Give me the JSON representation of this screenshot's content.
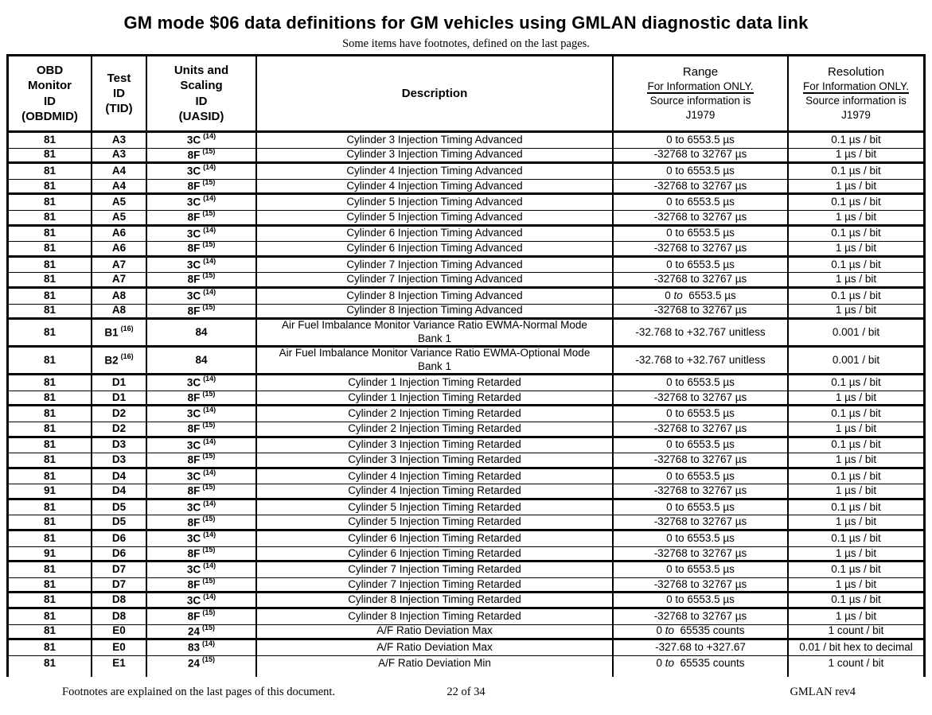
{
  "page": {
    "title": "GM mode $06 data definitions for GM vehicles using GMLAN diagnostic data link",
    "subtitle": "Some items have footnotes, defined on the last pages."
  },
  "table": {
    "headers": {
      "obdmid": "OBD\nMonitor\nID\n(OBDMID)",
      "tid": "Test\nID\n(TID)",
      "uasid": "Units and\nScaling\nID\n(UASID)",
      "description": "Description",
      "range": {
        "title": "Range",
        "note1": "For Information ONLY.",
        "note2": "Source information is",
        "note3": "J1979"
      },
      "resolution": {
        "title": "Resolution",
        "note1": "For Information ONLY.",
        "note2": "Source information is",
        "note3": "J1979"
      }
    },
    "rows": [
      {
        "obdmid": "81",
        "tid": "A3",
        "tid_sup": "",
        "uasid": "3C",
        "uasid_sup": "(14)",
        "desc": "Cylinder 3 Injection Timing Advanced",
        "desc2": "",
        "range": "0 to 6553.5 µs",
        "range_to_italic": false,
        "resolution": "0.1 µs / bit",
        "sep": "thin",
        "tall": false
      },
      {
        "obdmid": "81",
        "tid": "A3",
        "tid_sup": "",
        "uasid": "8F",
        "uasid_sup": "(15)",
        "desc": "Cylinder 3 Injection Timing Advanced",
        "desc2": "",
        "range": "-32768 to 32767 µs",
        "range_to_italic": false,
        "resolution": "1 µs / bit",
        "sep": "thick",
        "tall": false
      },
      {
        "obdmid": "81",
        "tid": "A4",
        "tid_sup": "",
        "uasid": "3C",
        "uasid_sup": "(14)",
        "desc": "Cylinder 4 Injection Timing Advanced",
        "desc2": "",
        "range": "0 to 6553.5 µs",
        "range_to_italic": false,
        "resolution": "0.1 µs / bit",
        "sep": "thin",
        "tall": false
      },
      {
        "obdmid": "81",
        "tid": "A4",
        "tid_sup": "",
        "uasid": "8F",
        "uasid_sup": "(15)",
        "desc": "Cylinder 4 Injection Timing Advanced",
        "desc2": "",
        "range": "-32768 to 32767 µs",
        "range_to_italic": false,
        "resolution": "1 µs / bit",
        "sep": "thick",
        "tall": false
      },
      {
        "obdmid": "81",
        "tid": "A5",
        "tid_sup": "",
        "uasid": "3C",
        "uasid_sup": "(14)",
        "desc": "Cylinder 5 Injection Timing Advanced",
        "desc2": "",
        "range": "0 to 6553.5 µs",
        "range_to_italic": false,
        "resolution": "0.1 µs / bit",
        "sep": "thin",
        "tall": false
      },
      {
        "obdmid": "81",
        "tid": "A5",
        "tid_sup": "",
        "uasid": "8F",
        "uasid_sup": "(15)",
        "desc": "Cylinder 5 Injection Timing Advanced",
        "desc2": "",
        "range": "-32768 to 32767 µs",
        "range_to_italic": false,
        "resolution": "1 µs / bit",
        "sep": "thick",
        "tall": false
      },
      {
        "obdmid": "81",
        "tid": "A6",
        "tid_sup": "",
        "uasid": "3C",
        "uasid_sup": "(14)",
        "desc": "Cylinder 6 Injection Timing Advanced",
        "desc2": "",
        "range": "0 to 6553.5 µs",
        "range_to_italic": false,
        "resolution": "0.1 µs / bit",
        "sep": "thin",
        "tall": false
      },
      {
        "obdmid": "81",
        "tid": "A6",
        "tid_sup": "",
        "uasid": "8F",
        "uasid_sup": "(15)",
        "desc": "Cylinder 6 Injection Timing Advanced",
        "desc2": "",
        "range": "-32768 to 32767 µs",
        "range_to_italic": false,
        "resolution": "1 µs / bit",
        "sep": "thick",
        "tall": false
      },
      {
        "obdmid": "81",
        "tid": "A7",
        "tid_sup": "",
        "uasid": "3C",
        "uasid_sup": "(14)",
        "desc": "Cylinder 7 Injection Timing Advanced",
        "desc2": "",
        "range": "0 to 6553.5 µs",
        "range_to_italic": false,
        "resolution": "0.1 µs / bit",
        "sep": "thin",
        "tall": false
      },
      {
        "obdmid": "81",
        "tid": "A7",
        "tid_sup": "",
        "uasid": "8F",
        "uasid_sup": "(15)",
        "desc": "Cylinder 7 Injection Timing Advanced",
        "desc2": "",
        "range": "-32768 to 32767 µs",
        "range_to_italic": false,
        "resolution": "1 µs / bit",
        "sep": "thick",
        "tall": false
      },
      {
        "obdmid": "81",
        "tid": "A8",
        "tid_sup": "",
        "uasid": "3C",
        "uasid_sup": "(14)",
        "desc": "Cylinder 8 Injection Timing Advanced",
        "desc2": "",
        "range": "0 to 6553.5 µs",
        "range_to_italic": true,
        "resolution": "0.1 µs / bit",
        "sep": "thin",
        "tall": false
      },
      {
        "obdmid": "81",
        "tid": "A8",
        "tid_sup": "",
        "uasid": "8F",
        "uasid_sup": "(15)",
        "desc": "Cylinder 8 Injection Timing Advanced",
        "desc2": "",
        "range": "-32768 to 32767 µs",
        "range_to_italic": false,
        "resolution": "1 µs / bit",
        "sep": "thick",
        "tall": false
      },
      {
        "obdmid": "81",
        "tid": "B1",
        "tid_sup": "(16)",
        "uasid": "84",
        "uasid_sup": "",
        "desc": "Air Fuel Imbalance Monitor Variance Ratio EWMA-Normal Mode",
        "desc2": "Bank 1",
        "range": "-32.768 to +32.767 unitless",
        "range_to_italic": false,
        "resolution": "0.001 / bit",
        "sep": "thick",
        "tall": true
      },
      {
        "obdmid": "81",
        "tid": "B2",
        "tid_sup": "(16)",
        "uasid": "84",
        "uasid_sup": "",
        "desc": "Air Fuel Imbalance Monitor Variance Ratio EWMA-Optional Mode",
        "desc2": "Bank 1",
        "range": "-32.768 to +32.767 unitless",
        "range_to_italic": false,
        "resolution": "0.001 / bit",
        "sep": "thick",
        "tall": true
      },
      {
        "obdmid": "81",
        "tid": "D1",
        "tid_sup": "",
        "uasid": "3C",
        "uasid_sup": "(14)",
        "desc": "Cylinder 1 Injection Timing Retarded",
        "desc2": "",
        "range": "0 to 6553.5 µs",
        "range_to_italic": false,
        "resolution": "0.1 µs / bit",
        "sep": "thin",
        "tall": false
      },
      {
        "obdmid": "81",
        "tid": "D1",
        "tid_sup": "",
        "uasid": "8F",
        "uasid_sup": "(15)",
        "desc": "Cylinder 1 Injection Timing Retarded",
        "desc2": "",
        "range": "-32768 to 32767 µs",
        "range_to_italic": false,
        "resolution": "1 µs / bit",
        "sep": "thick",
        "tall": false
      },
      {
        "obdmid": "81",
        "tid": "D2",
        "tid_sup": "",
        "uasid": "3C",
        "uasid_sup": "(14)",
        "desc": "Cylinder 2 Injection Timing Retarded",
        "desc2": "",
        "range": "0 to 6553.5 µs",
        "range_to_italic": false,
        "resolution": "0.1 µs / bit",
        "sep": "thin",
        "tall": false
      },
      {
        "obdmid": "81",
        "tid": "D2",
        "tid_sup": "",
        "uasid": "8F",
        "uasid_sup": "(15)",
        "desc": "Cylinder 2 Injection Timing Retarded",
        "desc2": "",
        "range": "-32768 to 32767 µs",
        "range_to_italic": false,
        "resolution": "1 µs / bit",
        "sep": "thick",
        "tall": false
      },
      {
        "obdmid": "81",
        "tid": "D3",
        "tid_sup": "",
        "uasid": "3C",
        "uasid_sup": "(14)",
        "desc": "Cylinder 3 Injection Timing Retarded",
        "desc2": "",
        "range": "0 to 6553.5 µs",
        "range_to_italic": false,
        "resolution": "0.1 µs / bit",
        "sep": "thin",
        "tall": false
      },
      {
        "obdmid": "81",
        "tid": "D3",
        "tid_sup": "",
        "uasid": "8F",
        "uasid_sup": "(15)",
        "desc": "Cylinder 3 Injection Timing Retarded",
        "desc2": "",
        "range": "-32768 to 32767 µs",
        "range_to_italic": false,
        "resolution": "1 µs / bit",
        "sep": "thick",
        "tall": false
      },
      {
        "obdmid": "81",
        "tid": "D4",
        "tid_sup": "",
        "uasid": "3C",
        "uasid_sup": "(14)",
        "desc": "Cylinder 4 Injection Timing Retarded",
        "desc2": "",
        "range": "0 to 6553.5 µs",
        "range_to_italic": false,
        "resolution": "0.1 µs / bit",
        "sep": "thin",
        "tall": false
      },
      {
        "obdmid": "91",
        "tid": "D4",
        "tid_sup": "",
        "uasid": "8F",
        "uasid_sup": "(15)",
        "desc": "Cylinder 4 Injection Timing Retarded",
        "desc2": "",
        "range": "-32768 to 32767 µs",
        "range_to_italic": false,
        "resolution": "1 µs / bit",
        "sep": "thick",
        "tall": false
      },
      {
        "obdmid": "81",
        "tid": "D5",
        "tid_sup": "",
        "uasid": "3C",
        "uasid_sup": "(14)",
        "desc": "Cylinder 5 Injection Timing Retarded",
        "desc2": "",
        "range": "0 to 6553.5 µs",
        "range_to_italic": false,
        "resolution": "0.1 µs / bit",
        "sep": "thin",
        "tall": false
      },
      {
        "obdmid": "81",
        "tid": "D5",
        "tid_sup": "",
        "uasid": "8F",
        "uasid_sup": "(15)",
        "desc": "Cylinder 5 Injection Timing Retarded",
        "desc2": "",
        "range": "-32768 to 32767 µs",
        "range_to_italic": false,
        "resolution": "1 µs / bit",
        "sep": "thick",
        "tall": false
      },
      {
        "obdmid": "81",
        "tid": "D6",
        "tid_sup": "",
        "uasid": "3C",
        "uasid_sup": "(14)",
        "desc": "Cylinder 6 Injection Timing Retarded",
        "desc2": "",
        "range": "0 to 6553.5 µs",
        "range_to_italic": false,
        "resolution": "0.1 µs / bit",
        "sep": "thin",
        "tall": false
      },
      {
        "obdmid": "91",
        "tid": "D6",
        "tid_sup": "",
        "uasid": "8F",
        "uasid_sup": "(15)",
        "desc": "Cylinder 6 Injection Timing Retarded",
        "desc2": "",
        "range": "-32768 to 32767 µs",
        "range_to_italic": false,
        "resolution": "1 µs / bit",
        "sep": "thick",
        "tall": false
      },
      {
        "obdmid": "81",
        "tid": "D7",
        "tid_sup": "",
        "uasid": "3C",
        "uasid_sup": "(14)",
        "desc": "Cylinder 7 Injection Timing Retarded",
        "desc2": "",
        "range": "0 to 6553.5 µs",
        "range_to_italic": false,
        "resolution": "0.1 µs / bit",
        "sep": "thin",
        "tall": false
      },
      {
        "obdmid": "81",
        "tid": "D7",
        "tid_sup": "",
        "uasid": "8F",
        "uasid_sup": "(15)",
        "desc": "Cylinder 7 Injection Timing Retarded",
        "desc2": "",
        "range": "-32768 to 32767 µs",
        "range_to_italic": false,
        "resolution": "1 µs / bit",
        "sep": "thick",
        "tall": false
      },
      {
        "obdmid": "81",
        "tid": "D8",
        "tid_sup": "",
        "uasid": "3C",
        "uasid_sup": "(14)",
        "desc": "Cylinder 8 Injection Timing Retarded",
        "desc2": "",
        "range": "0 to 6553.5 µs",
        "range_to_italic": false,
        "resolution": "0.1 µs / bit",
        "sep": "thick",
        "tall": false
      },
      {
        "obdmid": "81",
        "tid": "D8",
        "tid_sup": "",
        "uasid": "8F",
        "uasid_sup": "(15)",
        "desc": "Cylinder 8 Injection Timing Retarded",
        "desc2": "",
        "range": "-32768 to 32767 µs",
        "range_to_italic": false,
        "resolution": "1 µs / bit",
        "sep": "thin",
        "tall": false
      },
      {
        "obdmid": "81",
        "tid": "E0",
        "tid_sup": "",
        "uasid": "24",
        "uasid_sup": "(15)",
        "desc": "A/F Ratio Deviation Max",
        "desc2": "",
        "range": "0 to 65535 counts",
        "range_to_italic": true,
        "resolution": "1 count / bit",
        "sep": "thick",
        "tall": false
      },
      {
        "obdmid": "81",
        "tid": "E0",
        "tid_sup": "",
        "uasid": "83",
        "uasid_sup": "(14)",
        "desc": "A/F Ratio Deviation Max",
        "desc2": "",
        "range": "-327.68 to +327.67",
        "range_to_italic": false,
        "resolution": "0.01 / bit hex to decimal",
        "sep": "thin",
        "tall": false
      },
      {
        "obdmid": "81",
        "tid": "E1",
        "tid_sup": "",
        "uasid": "24",
        "uasid_sup": "(15)",
        "desc": "A/F Ratio Deviation Min",
        "desc2": "",
        "range": "0 to 65535 counts",
        "range_to_italic": true,
        "resolution": "1 count / bit",
        "sep": "none",
        "tall": false
      }
    ]
  },
  "footer": {
    "left": "Footnotes are explained on the last pages of this document.",
    "center": "22 of 34",
    "right": "GMLAN  rev4"
  }
}
